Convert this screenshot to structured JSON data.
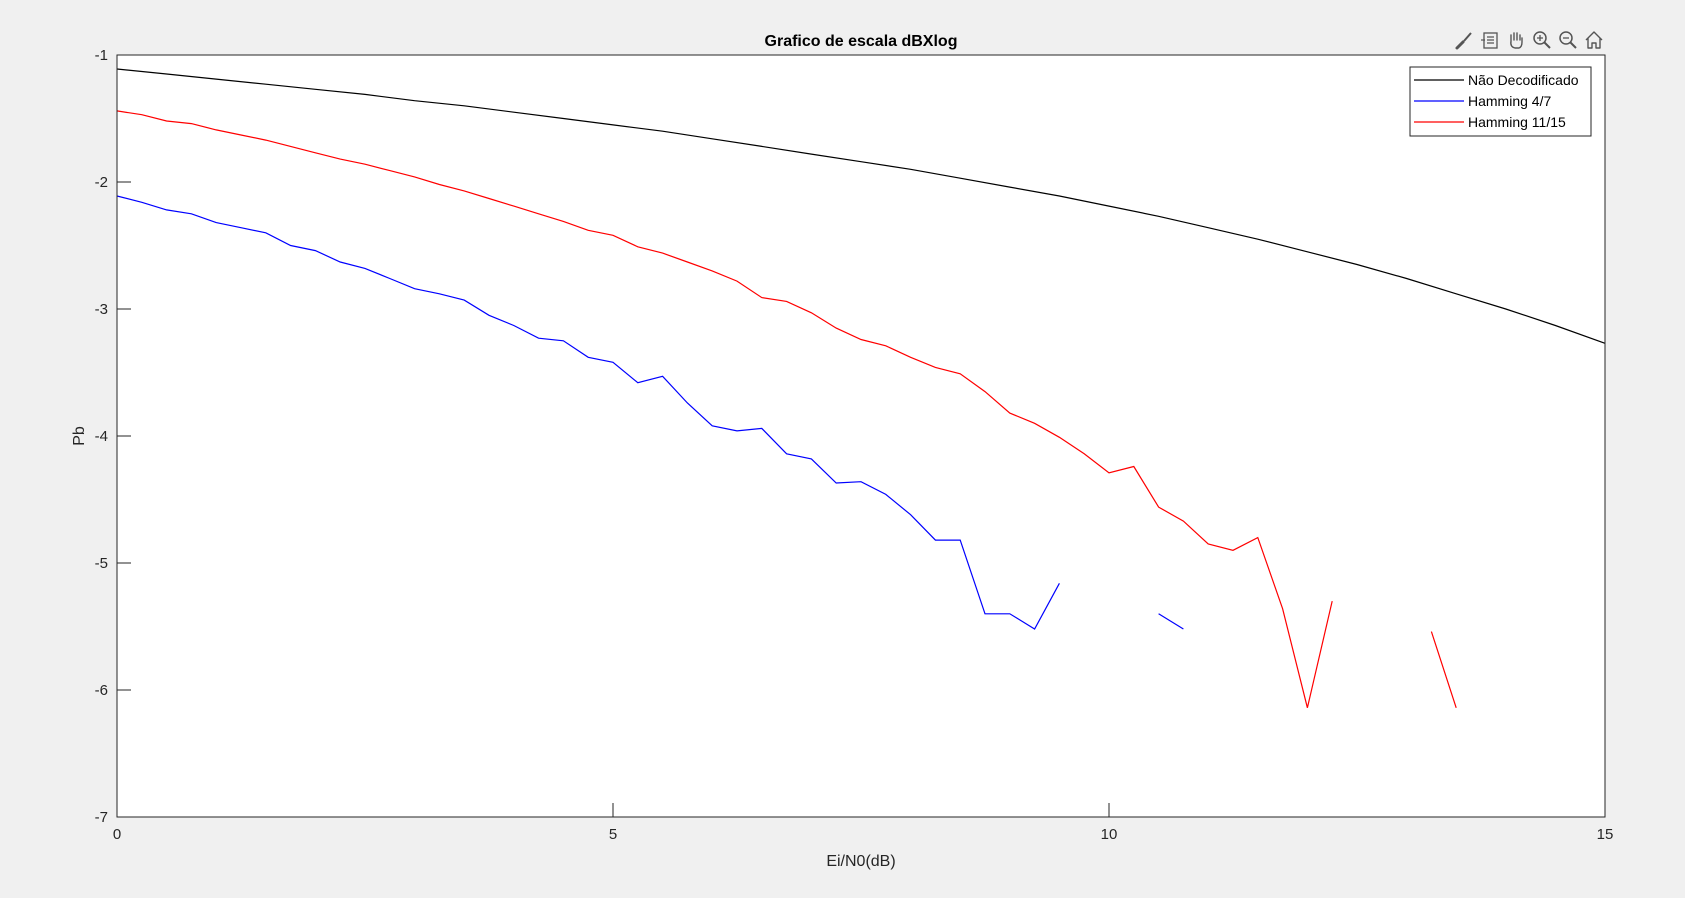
{
  "window": {
    "background": "#f0f0f0"
  },
  "toolbar": {
    "icons": [
      "brush-icon",
      "insert-legend-icon",
      "pan-hand-icon",
      "zoom-in-icon",
      "zoom-out-icon",
      "home-icon"
    ]
  },
  "chart_data": {
    "type": "line",
    "title": "Grafico de escala dBXlog",
    "xlabel": "Ei/N0(dB)",
    "ylabel": "Pb",
    "xlim": [
      0,
      15
    ],
    "ylim": [
      -7,
      -1
    ],
    "xticks": [
      0,
      5,
      10,
      15
    ],
    "yticks": [
      -7,
      -6,
      -5,
      -4,
      -3,
      -2,
      -1
    ],
    "grid": false,
    "legend_position": "top-right",
    "series": [
      {
        "name": "Não Decodificado",
        "color": "#000000",
        "x": [
          0,
          0.5,
          1,
          1.5,
          2,
          2.5,
          3,
          3.5,
          4,
          4.5,
          5,
          5.5,
          6,
          6.5,
          7,
          7.5,
          8,
          8.5,
          9,
          9.5,
          10,
          10.5,
          11,
          11.5,
          12,
          12.5,
          13,
          13.5,
          14,
          14.5,
          15
        ],
        "y": [
          -1.11,
          -1.15,
          -1.19,
          -1.23,
          -1.27,
          -1.31,
          -1.36,
          -1.4,
          -1.45,
          -1.5,
          -1.55,
          -1.6,
          -1.66,
          -1.72,
          -1.78,
          -1.84,
          -1.9,
          -1.97,
          -2.04,
          -2.11,
          -2.19,
          -2.27,
          -2.36,
          -2.45,
          -2.55,
          -2.65,
          -2.76,
          -2.88,
          -3.0,
          -3.13,
          -3.27
        ]
      },
      {
        "name": "Hamming 4/7",
        "color": "#0000ff",
        "x": [
          0,
          0.25,
          0.5,
          0.75,
          1,
          1.25,
          1.5,
          1.75,
          2,
          2.25,
          2.5,
          2.75,
          3,
          3.25,
          3.5,
          3.75,
          4,
          4.25,
          4.5,
          4.75,
          5,
          5.25,
          5.5,
          5.75,
          6,
          6.25,
          6.5,
          6.75,
          7,
          7.25,
          7.5,
          7.75,
          8,
          8.25,
          8.5,
          8.75,
          9,
          9.25,
          9.5,
          null,
          10.5,
          10.75
        ],
        "y": [
          -2.11,
          -2.16,
          -2.22,
          -2.25,
          -2.32,
          -2.36,
          -2.4,
          -2.5,
          -2.54,
          -2.63,
          -2.68,
          -2.76,
          -2.84,
          -2.88,
          -2.93,
          -3.05,
          -3.13,
          -3.23,
          -3.25,
          -3.38,
          -3.42,
          -3.58,
          -3.53,
          -3.74,
          -3.92,
          -3.96,
          -3.94,
          -4.14,
          -4.18,
          -4.37,
          -4.36,
          -4.46,
          -4.62,
          -4.82,
          -4.82,
          -5.4,
          -5.4,
          -5.52,
          -5.16,
          null,
          -5.4,
          -5.52
        ]
      },
      {
        "name": "Hamming 11/15",
        "color": "#ff0000",
        "x": [
          0,
          0.25,
          0.5,
          0.75,
          1,
          1.25,
          1.5,
          1.75,
          2,
          2.25,
          2.5,
          2.75,
          3,
          3.25,
          3.5,
          3.75,
          4,
          4.25,
          4.5,
          4.75,
          5,
          5.25,
          5.5,
          5.75,
          6,
          6.25,
          6.5,
          6.75,
          7,
          7.25,
          7.5,
          7.75,
          8,
          8.25,
          8.5,
          8.75,
          9,
          9.25,
          9.5,
          9.75,
          10,
          10.25,
          10.5,
          10.75,
          11,
          11.25,
          11.5,
          11.75,
          12,
          12.25,
          null,
          13.25,
          13.5
        ],
        "y": [
          -1.44,
          -1.47,
          -1.52,
          -1.54,
          -1.59,
          -1.63,
          -1.67,
          -1.72,
          -1.77,
          -1.82,
          -1.86,
          -1.91,
          -1.96,
          -2.02,
          -2.07,
          -2.13,
          -2.19,
          -2.25,
          -2.31,
          -2.38,
          -2.42,
          -2.51,
          -2.56,
          -2.63,
          -2.7,
          -2.78,
          -2.91,
          -2.94,
          -3.03,
          -3.15,
          -3.24,
          -3.29,
          -3.38,
          -3.46,
          -3.51,
          -3.65,
          -3.82,
          -3.9,
          -4.01,
          -4.14,
          -4.29,
          -4.24,
          -4.56,
          -4.67,
          -4.85,
          -4.9,
          -4.8,
          -5.36,
          -6.14,
          -5.3,
          null,
          -5.54,
          -6.14
        ]
      }
    ]
  }
}
